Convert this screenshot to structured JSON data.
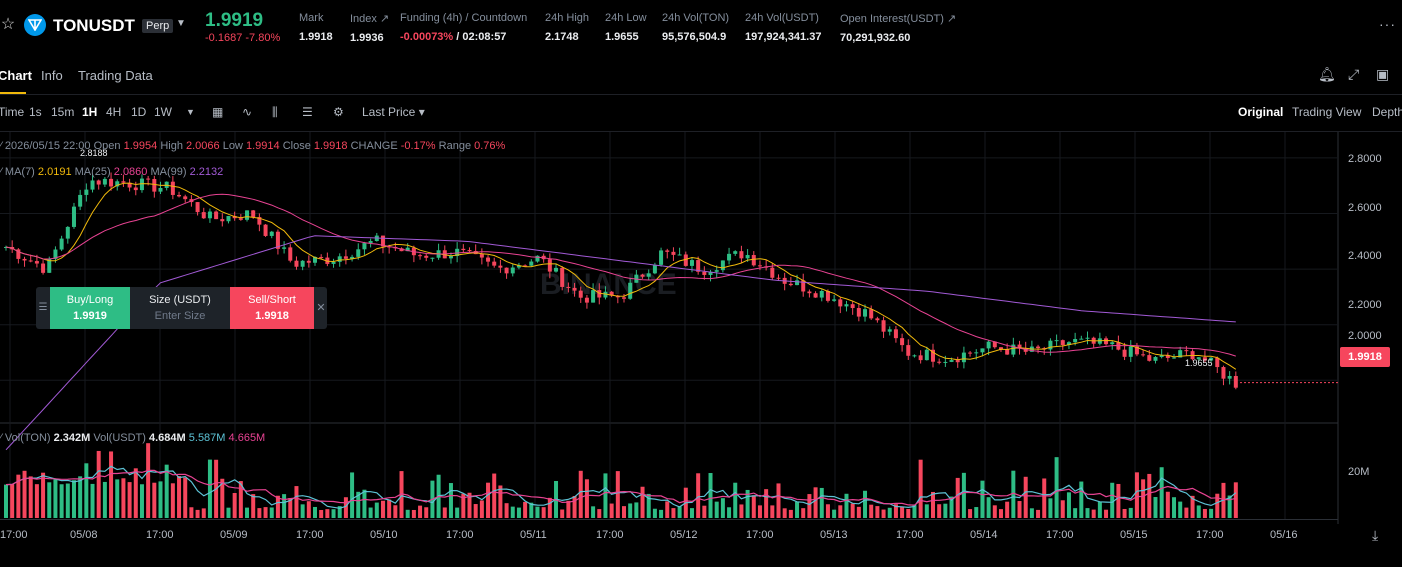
{
  "header": {
    "symbol": "TONUSDT",
    "contract_type": "Perp",
    "last_price": "1.9919",
    "change": "-0.1687",
    "change_pct": "-7.80%",
    "stats": [
      {
        "label": "Mark",
        "value": "1.9918"
      },
      {
        "label": "Index",
        "value": "1.9936"
      },
      {
        "label": "Funding (4h) / Countdown",
        "value_neg": "-0.00073%",
        "value": "/ 02:08:57"
      },
      {
        "label": "24h High",
        "value": "2.1748"
      },
      {
        "label": "24h Low",
        "value": "1.9655"
      },
      {
        "label": "24h Vol(TON)",
        "value": "95,576,504.9"
      },
      {
        "label": "24h Vol(USDT)",
        "value": "197,924,341.37"
      },
      {
        "label": "Open Interest(USDT)",
        "value": "70,291,932.60"
      }
    ],
    "more_icon": "more-horizontal-icon"
  },
  "tabs": [
    "Chart",
    "Info",
    "Trading Data"
  ],
  "toolbar": {
    "intervals": [
      "Time",
      "1s",
      "15m",
      "1H",
      "4H",
      "1D",
      "1W"
    ],
    "active_interval": "1H",
    "price_type": "Last Price",
    "views": [
      "Original",
      "Trading View",
      "Depth"
    ],
    "active_view": "Original"
  },
  "ohlc": {
    "date": "2026/05/15 22:00",
    "open_label": "Open",
    "open": "1.9954",
    "high_label": "High",
    "high": "2.0066",
    "low_label": "Low",
    "low": "1.9914",
    "close_label": "Close",
    "close": "1.9918",
    "change_label": "CHANGE",
    "change": "-0.17%",
    "range_label": "Range",
    "range": "0.76%"
  },
  "ma": {
    "ma7_label": "MA(7)",
    "ma7": "2.0191",
    "ma25_label": "MA(25)",
    "ma25": "2.0860",
    "ma99_label": "MA(99)",
    "ma99": "2.2132"
  },
  "volume_legend": {
    "ton_label": "Vol(TON)",
    "ton": "2.342M",
    "usdt_label": "Vol(USDT)",
    "usdt": "4.684M",
    "ma1": "5.587M",
    "ma2": "4.665M"
  },
  "trade_panel": {
    "buy_label": "Buy/Long",
    "buy_price": "1.9919",
    "size_label": "Size (USDT)",
    "size_placeholder": "Enter Size",
    "sell_label": "Sell/Short",
    "sell_price": "1.9918"
  },
  "price_axis": [
    "2.8000",
    "2.6000",
    "2.4000",
    "2.2000",
    "2.0000"
  ],
  "current_price_tag": "1.9918",
  "volume_axis": [
    "20M"
  ],
  "time_axis": [
    "17:00",
    "05/08",
    "17:00",
    "05/09",
    "17:00",
    "05/10",
    "17:00",
    "05/11",
    "17:00",
    "05/12",
    "17:00",
    "05/13",
    "17:00",
    "05/14",
    "17:00",
    "05/15",
    "17:00",
    "05/16"
  ],
  "high_marker": "2.8188",
  "low_marker": "1.9655",
  "watermark": "BINANCE",
  "chart_data": {
    "type": "candlestick",
    "interval": "1H",
    "price_ylim": [
      1.85,
      2.85
    ],
    "anchor_closes": [
      2.48,
      2.4,
      2.72,
      2.71,
      2.69,
      2.58,
      2.6,
      2.42,
      2.44,
      2.5,
      2.45,
      2.46,
      2.4,
      2.44,
      2.3,
      2.3,
      2.46,
      2.4,
      2.46,
      2.36,
      2.31,
      2.24,
      2.1,
      2.08,
      2.12,
      2.1,
      2.14,
      2.12,
      2.07,
      2.1,
      1.99
    ],
    "ma99_anchors": [
      1.75,
      2.35,
      2.52,
      2.5,
      2.43,
      2.36,
      2.32,
      2.25,
      2.21
    ],
    "colors": {
      "up": "#2ebd85",
      "down": "#f6465d",
      "ma7": "#f0b90b",
      "ma25": "#e84393",
      "ma99": "#a25ad6"
    }
  }
}
